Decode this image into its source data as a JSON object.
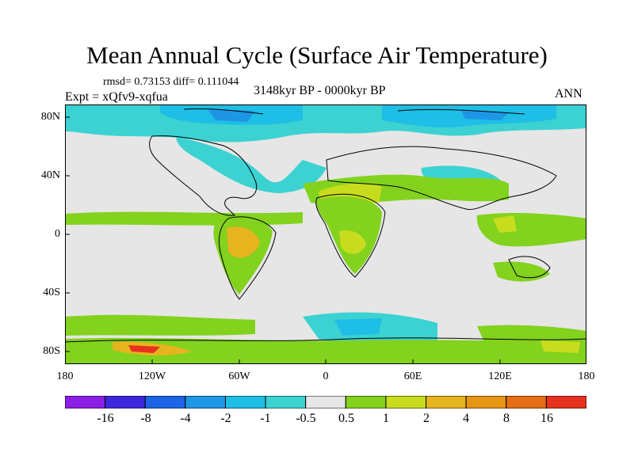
{
  "title": "Mean Annual Cycle (Surface Air Temperature)",
  "stats": "rmsd= 0.73153 diff= 0.111044",
  "period": "3148kyr BP - 0000kyr BP",
  "experiment": "Expt = xQfv9-xqfua",
  "season": "ANN",
  "lat_labels": [
    "80N",
    "40N",
    "0",
    "40S",
    "80S"
  ],
  "lon_labels": [
    "180",
    "120W",
    "60W",
    "0",
    "60E",
    "120E",
    "180"
  ],
  "colorbar": {
    "colors": [
      "#8c1ee6",
      "#3c28dc",
      "#1e64e6",
      "#1e96e6",
      "#1ebee6",
      "#3cd2d2",
      "#e6e6e6",
      "#82d21e",
      "#c8dc1e",
      "#e6b41e",
      "#e69614",
      "#e66e14",
      "#e6321e"
    ],
    "labels": [
      "-16",
      "-8",
      "-4",
      "-2",
      "-1",
      "-0.5",
      "0.5",
      "1",
      "2",
      "4",
      "8",
      "16"
    ]
  }
}
